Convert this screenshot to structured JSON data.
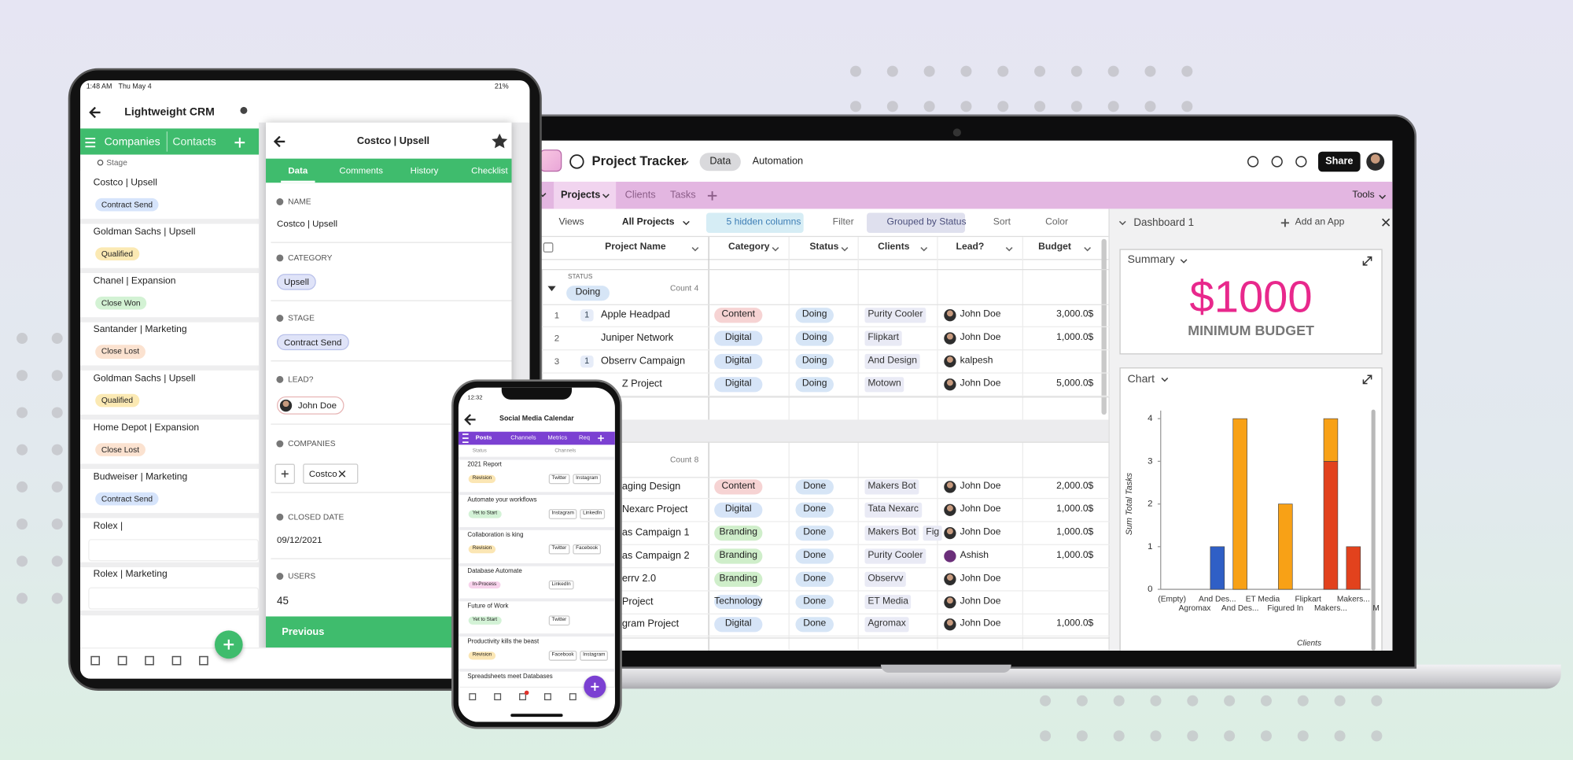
{
  "tablet": {
    "status_bar": {
      "time": "1:48 AM",
      "date": "Thu May 4",
      "battery": "21%"
    },
    "title": "Lightweight CRM",
    "tabs": [
      "Companies",
      "Contacts"
    ],
    "group_label": "Stage",
    "records": [
      {
        "name": "Costco | Upsell",
        "stage": "Contract Send",
        "stage_color": "#d6e4fb"
      },
      {
        "name": "Goldman Sachs | Upsell",
        "stage": "Qualified",
        "stage_color": "#fbe9b3"
      },
      {
        "name": "Chanel | Expansion",
        "stage": "Close Won",
        "stage_color": "#d3f2d4"
      },
      {
        "name": "Santander | Marketing",
        "stage": "Close Lost",
        "stage_color": "#fbe2d0"
      },
      {
        "name": "Goldman Sachs | Upsell",
        "stage": "Qualified",
        "stage_color": "#fbe9b3"
      },
      {
        "name": "Home Depot | Expansion",
        "stage": "Close Lost",
        "stage_color": "#fbe2d0"
      },
      {
        "name": "Budweiser | Marketing",
        "stage": "Contract Send",
        "stage_color": "#d6e4fb"
      },
      {
        "name": "Rolex |"
      },
      {
        "name": "Rolex | Marketing"
      }
    ],
    "detail": {
      "title": "Costco | Upsell",
      "tabs": [
        "Data",
        "Comments",
        "History",
        "Checklist"
      ],
      "fields": [
        {
          "label": "NAME",
          "value": "Costco | Upsell"
        },
        {
          "label": "CATEGORY",
          "value": "Upsell"
        },
        {
          "label": "STAGE",
          "value": "Contract Send"
        },
        {
          "label": "LEAD?",
          "value": "John Doe"
        },
        {
          "label": "COMPANIES",
          "value": "Costco"
        },
        {
          "label": "CLOSED DATE",
          "value": "09/12/2021"
        },
        {
          "label": "USERS",
          "value": 45
        }
      ],
      "button": "Previous"
    }
  },
  "phone": {
    "time": "12:32",
    "title": "Social Media Calendar",
    "tabs": [
      "Posts",
      "Channels",
      "Metrics",
      "Req"
    ],
    "columns": [
      "Status",
      "Channels"
    ],
    "posts": [
      {
        "title": "2021 Report",
        "status": "Revision",
        "status_color": "#fbe6b4",
        "channels": [
          "Twitter",
          "Instagram"
        ]
      },
      {
        "title": "Automate your workflows",
        "status": "Yet to Start",
        "status_color": "#d3f2d6",
        "channels": [
          "Instagram",
          "LinkedIn"
        ]
      },
      {
        "title": "Collaboration is king",
        "status": "Revision",
        "status_color": "#fbe6b4",
        "channels": [
          "Twitter",
          "Facebook"
        ]
      },
      {
        "title": "Database Automate",
        "status": "In-Process",
        "status_color": "#f8d3ec",
        "channels": [
          "LinkedIn"
        ]
      },
      {
        "title": "Future of Work",
        "status": "Yet to Start",
        "status_color": "#d3f2d6",
        "channels": [
          "Twitter"
        ]
      },
      {
        "title": "Productivity kills the beast",
        "status": "Revision",
        "status_color": "#fbe6b4",
        "channels": [
          "Facebook",
          "Instagram"
        ]
      },
      {
        "title": "Spreadsheets meet Databases"
      }
    ]
  },
  "laptop": {
    "title": "Project Tracker",
    "modes": [
      "Data",
      "Automation"
    ],
    "share": "Share",
    "tables": [
      "Projects",
      "Clients",
      "Tasks"
    ],
    "tools": "Tools",
    "toolbar": [
      "Views",
      "All Projects",
      "5 hidden columns",
      "Filter",
      "Grouped by Status",
      "Sort",
      "Color"
    ],
    "columns": [
      "Project Name",
      "Category",
      "Status",
      "Clients",
      "Lead?",
      "Budget"
    ],
    "group_field": "STATUS",
    "status_color": "#d6e5f6",
    "groups": [
      {
        "label": "Doing",
        "count_label": "Count",
        "count": 4,
        "rows": [
          {
            "num": 1,
            "tasks": 1,
            "name": "Apple Headpad",
            "category": "Content",
            "category_color": "#f6d3d3",
            "status": "Doing",
            "clients": [
              "Purity Cooler"
            ],
            "lead": "John Doe",
            "budget": "3,000.0$"
          },
          {
            "num": 2,
            "name": "Juniper Network",
            "category": "Digital",
            "category_color": "#d6e4f7",
            "status": "Doing",
            "clients": [
              "Flipkart"
            ],
            "lead": "John Doe",
            "budget": "1,000.0$"
          },
          {
            "num": 3,
            "tasks": 1,
            "name": "Obserrv Campaign",
            "category": "Digital",
            "category_color": "#d6e4f7",
            "status": "Doing",
            "clients": [
              "And Design"
            ],
            "lead": "kalpesh"
          },
          {
            "name": "Z Project",
            "category": "Digital",
            "category_color": "#d6e4f7",
            "status": "Doing",
            "clients": [
              "Motown"
            ],
            "lead": "John Doe",
            "budget": "5,000.0$"
          }
        ]
      },
      {
        "count_label": "Count",
        "count": 8,
        "rows": [
          {
            "name": "aging Design",
            "category": "Content",
            "category_color": "#f6d3d3",
            "status": "Done",
            "clients": [
              "Makers Bot"
            ],
            "lead": "John Doe",
            "budget": "2,000.0$"
          },
          {
            "name": "Nexarc Project",
            "category": "Digital",
            "category_color": "#d6e4f7",
            "status": "Done",
            "clients": [
              "Tata Nexarc"
            ],
            "lead": "John Doe",
            "budget": "1,000.0$"
          },
          {
            "name": "as Campaign 1",
            "category": "Branding",
            "category_color": "#cfeeca",
            "status": "Done",
            "clients": [
              "Makers Bot",
              "Fig"
            ],
            "lead": "John Doe",
            "budget": "1,000.0$"
          },
          {
            "name": "as Campaign 2",
            "category": "Branding",
            "category_color": "#cfeeca",
            "status": "Done",
            "clients": [
              "Purity Cooler"
            ],
            "lead": "Ashish",
            "budget": "1,000.0$"
          },
          {
            "name": "errv 2.0",
            "category": "Branding",
            "category_color": "#cfeeca",
            "status": "Done",
            "clients": [
              "Observv"
            ],
            "lead": "John Doe"
          },
          {
            "name": "Project",
            "category": "Technology",
            "category_color": "#d6e4f7",
            "status": "Done",
            "clients": [
              "ET Media"
            ],
            "lead": "John Doe"
          },
          {
            "name": "gram Project",
            "category": "Digital",
            "category_color": "#d6e4f7",
            "status": "Done",
            "clients": [
              "Agromax"
            ],
            "lead": "John Doe",
            "budget": "1,000.0$"
          }
        ]
      }
    ],
    "dashboard": {
      "title": "Dashboard 1",
      "add_app": "Add an App",
      "summary": {
        "title": "Summary",
        "value": "$1000",
        "label": "MINIMUM BUDGET"
      },
      "chart_title": "Chart"
    }
  },
  "chart_data": {
    "type": "bar",
    "stacked": true,
    "x_label": "Clients",
    "y_label": "Sum Total Tasks",
    "categories": [
      "(Empty)",
      "Agromax",
      "And Des...",
      "And Des...",
      "ET Media",
      "Figured In",
      "Flipkart",
      "Makers...",
      "Makers...",
      "M"
    ],
    "series": [
      {
        "color": "#2f5fc6",
        "values": [
          0,
          0,
          1,
          0,
          0,
          0,
          0,
          0,
          0,
          0
        ]
      },
      {
        "color": "#e2421d",
        "values": [
          0,
          0,
          0,
          0,
          0,
          0,
          0,
          3,
          1,
          0
        ]
      },
      {
        "color": "#f8a116",
        "values": [
          0,
          0,
          0,
          4,
          0,
          2,
          0,
          1,
          0,
          0
        ]
      }
    ],
    "ylim": [
      0,
      4
    ],
    "yticks": [
      0,
      1,
      2,
      3,
      4
    ]
  }
}
